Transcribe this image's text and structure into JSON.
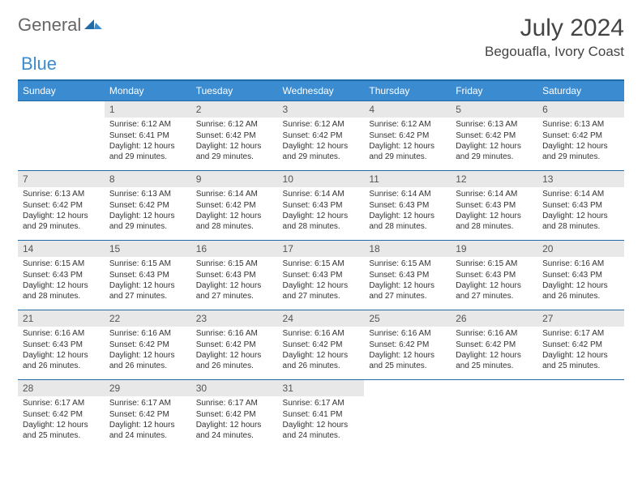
{
  "logo": {
    "part1": "General",
    "part2": "Blue"
  },
  "title": "July 2024",
  "location": "Begouafla, Ivory Coast",
  "colors": {
    "header_bg": "#3b8bd0",
    "header_border": "#1f6aa8",
    "daynum_bg": "#e8e8e8",
    "text": "#333333"
  },
  "weekdays": [
    "Sunday",
    "Monday",
    "Tuesday",
    "Wednesday",
    "Thursday",
    "Friday",
    "Saturday"
  ],
  "weeks": [
    [
      null,
      {
        "n": "1",
        "sr": "6:12 AM",
        "ss": "6:41 PM",
        "dl": "12 hours and 29 minutes."
      },
      {
        "n": "2",
        "sr": "6:12 AM",
        "ss": "6:42 PM",
        "dl": "12 hours and 29 minutes."
      },
      {
        "n": "3",
        "sr": "6:12 AM",
        "ss": "6:42 PM",
        "dl": "12 hours and 29 minutes."
      },
      {
        "n": "4",
        "sr": "6:12 AM",
        "ss": "6:42 PM",
        "dl": "12 hours and 29 minutes."
      },
      {
        "n": "5",
        "sr": "6:13 AM",
        "ss": "6:42 PM",
        "dl": "12 hours and 29 minutes."
      },
      {
        "n": "6",
        "sr": "6:13 AM",
        "ss": "6:42 PM",
        "dl": "12 hours and 29 minutes."
      }
    ],
    [
      {
        "n": "7",
        "sr": "6:13 AM",
        "ss": "6:42 PM",
        "dl": "12 hours and 29 minutes."
      },
      {
        "n": "8",
        "sr": "6:13 AM",
        "ss": "6:42 PM",
        "dl": "12 hours and 29 minutes."
      },
      {
        "n": "9",
        "sr": "6:14 AM",
        "ss": "6:42 PM",
        "dl": "12 hours and 28 minutes."
      },
      {
        "n": "10",
        "sr": "6:14 AM",
        "ss": "6:43 PM",
        "dl": "12 hours and 28 minutes."
      },
      {
        "n": "11",
        "sr": "6:14 AM",
        "ss": "6:43 PM",
        "dl": "12 hours and 28 minutes."
      },
      {
        "n": "12",
        "sr": "6:14 AM",
        "ss": "6:43 PM",
        "dl": "12 hours and 28 minutes."
      },
      {
        "n": "13",
        "sr": "6:14 AM",
        "ss": "6:43 PM",
        "dl": "12 hours and 28 minutes."
      }
    ],
    [
      {
        "n": "14",
        "sr": "6:15 AM",
        "ss": "6:43 PM",
        "dl": "12 hours and 28 minutes."
      },
      {
        "n": "15",
        "sr": "6:15 AM",
        "ss": "6:43 PM",
        "dl": "12 hours and 27 minutes."
      },
      {
        "n": "16",
        "sr": "6:15 AM",
        "ss": "6:43 PM",
        "dl": "12 hours and 27 minutes."
      },
      {
        "n": "17",
        "sr": "6:15 AM",
        "ss": "6:43 PM",
        "dl": "12 hours and 27 minutes."
      },
      {
        "n": "18",
        "sr": "6:15 AM",
        "ss": "6:43 PM",
        "dl": "12 hours and 27 minutes."
      },
      {
        "n": "19",
        "sr": "6:15 AM",
        "ss": "6:43 PM",
        "dl": "12 hours and 27 minutes."
      },
      {
        "n": "20",
        "sr": "6:16 AM",
        "ss": "6:43 PM",
        "dl": "12 hours and 26 minutes."
      }
    ],
    [
      {
        "n": "21",
        "sr": "6:16 AM",
        "ss": "6:43 PM",
        "dl": "12 hours and 26 minutes."
      },
      {
        "n": "22",
        "sr": "6:16 AM",
        "ss": "6:42 PM",
        "dl": "12 hours and 26 minutes."
      },
      {
        "n": "23",
        "sr": "6:16 AM",
        "ss": "6:42 PM",
        "dl": "12 hours and 26 minutes."
      },
      {
        "n": "24",
        "sr": "6:16 AM",
        "ss": "6:42 PM",
        "dl": "12 hours and 26 minutes."
      },
      {
        "n": "25",
        "sr": "6:16 AM",
        "ss": "6:42 PM",
        "dl": "12 hours and 25 minutes."
      },
      {
        "n": "26",
        "sr": "6:16 AM",
        "ss": "6:42 PM",
        "dl": "12 hours and 25 minutes."
      },
      {
        "n": "27",
        "sr": "6:17 AM",
        "ss": "6:42 PM",
        "dl": "12 hours and 25 minutes."
      }
    ],
    [
      {
        "n": "28",
        "sr": "6:17 AM",
        "ss": "6:42 PM",
        "dl": "12 hours and 25 minutes."
      },
      {
        "n": "29",
        "sr": "6:17 AM",
        "ss": "6:42 PM",
        "dl": "12 hours and 24 minutes."
      },
      {
        "n": "30",
        "sr": "6:17 AM",
        "ss": "6:42 PM",
        "dl": "12 hours and 24 minutes."
      },
      {
        "n": "31",
        "sr": "6:17 AM",
        "ss": "6:41 PM",
        "dl": "12 hours and 24 minutes."
      },
      null,
      null,
      null
    ]
  ],
  "labels": {
    "sunrise": "Sunrise:",
    "sunset": "Sunset:",
    "daylight": "Daylight:"
  }
}
